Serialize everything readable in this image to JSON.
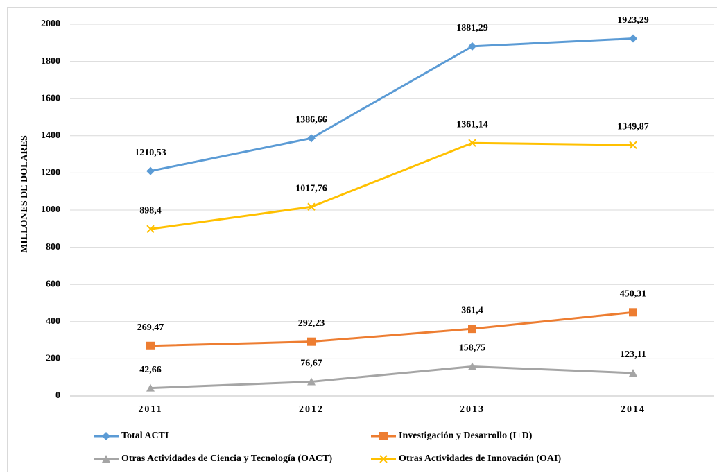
{
  "chart_data": {
    "type": "line",
    "ylabel": "MILLONES DE DOLARES",
    "categories": [
      "2011",
      "2012",
      "2013",
      "2014"
    ],
    "series": [
      {
        "name": "Total ACTI",
        "color": "#5b9bd5",
        "marker": "diamond",
        "values": [
          1210.53,
          1386.66,
          1881.29,
          1923.29
        ],
        "value_labels": [
          "1210,53",
          "1386,66",
          "1881,29",
          "1923,29"
        ]
      },
      {
        "name": "Investigación y Desarrollo (I+D)",
        "color": "#ed7d31",
        "marker": "square",
        "values": [
          269.47,
          292.23,
          361.4,
          450.31
        ],
        "value_labels": [
          "269,47",
          "292,23",
          "361,4",
          "450,31"
        ]
      },
      {
        "name": "Otras Actividades de Ciencia y Tecnología (OACT)",
        "color": "#a5a5a5",
        "marker": "triangle",
        "values": [
          42.66,
          76.67,
          158.75,
          123.11
        ],
        "value_labels": [
          "42,66",
          "76,67",
          "158,75",
          "123,11"
        ]
      },
      {
        "name": "Otras Actividades de Innovación (OAI)",
        "color": "#ffc000",
        "marker": "x",
        "values": [
          898.4,
          1017.76,
          1361.14,
          1349.87
        ],
        "value_labels": [
          "898,4",
          "1017,76",
          "1361,14",
          "1349,87"
        ]
      }
    ],
    "ylim": [
      0,
      2000
    ],
    "yticks": [
      0,
      200,
      400,
      600,
      800,
      1000,
      1200,
      1400,
      1600,
      1800,
      2000
    ],
    "grid": true
  }
}
